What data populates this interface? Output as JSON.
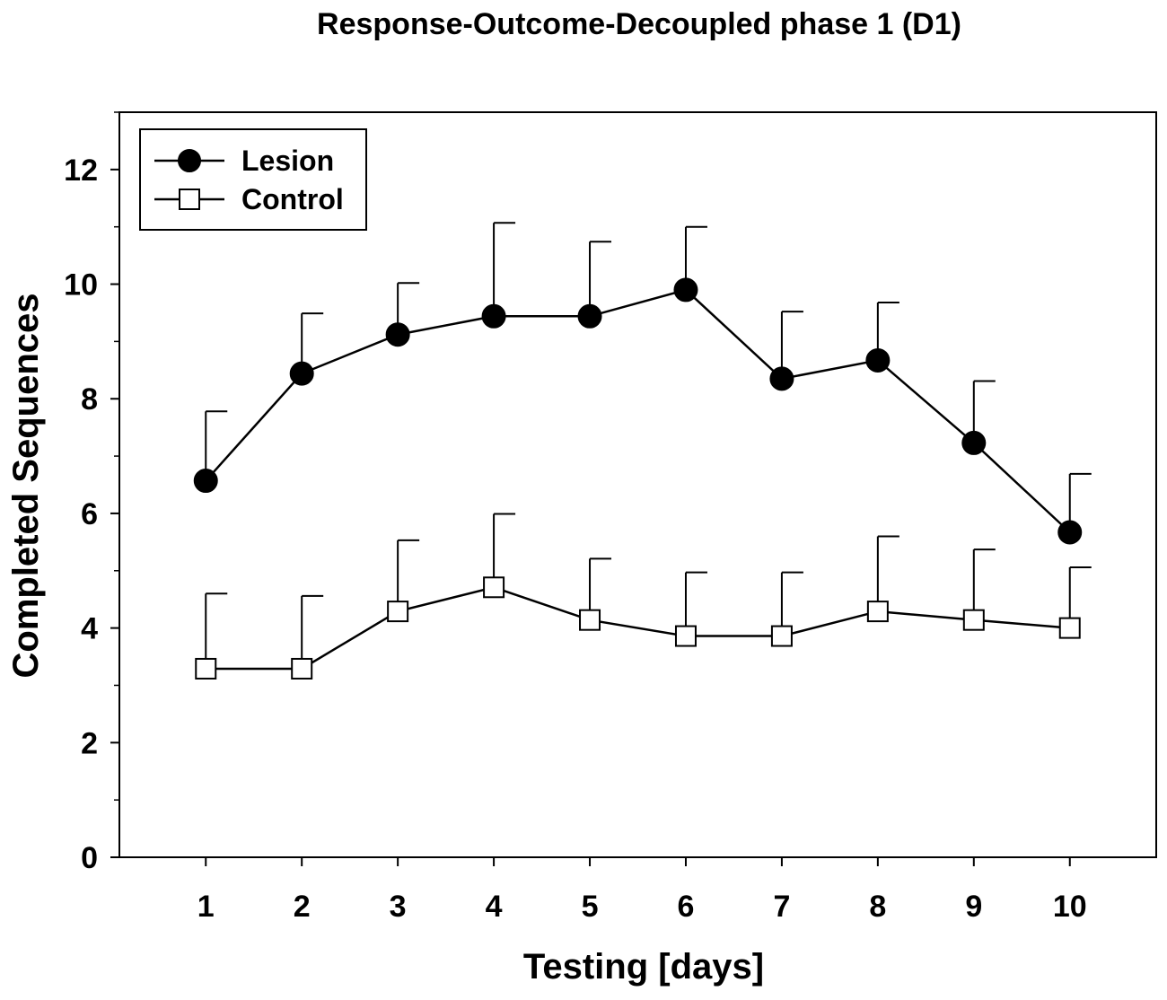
{
  "chart_data": {
    "type": "line",
    "title": "Response-Outcome-Decoupled phase 1 (D1)",
    "xlabel": "Testing [days]",
    "ylabel": "Completed Sequences",
    "x": [
      1,
      2,
      3,
      4,
      5,
      6,
      7,
      8,
      9,
      10
    ],
    "x_tick_labels": [
      "1",
      "2",
      "3",
      "4",
      "5",
      "6",
      "7",
      "8",
      "9",
      "10"
    ],
    "xlim": [
      0.1,
      10.9
    ],
    "ylim": [
      0,
      13
    ],
    "y_ticks": [
      0,
      2,
      4,
      6,
      8,
      10,
      12
    ],
    "y_tick_labels": [
      "0",
      "2",
      "4",
      "6",
      "8",
      "10",
      "12"
    ],
    "y_minor_ticks": [
      1,
      3,
      5,
      7,
      9,
      11,
      13
    ],
    "grid": false,
    "legend_position": "top-left",
    "series": [
      {
        "name": "Lesion",
        "marker": "filled-circle",
        "color": "#000000",
        "values": [
          6.57,
          8.44,
          9.12,
          9.44,
          9.44,
          9.9,
          8.35,
          8.67,
          7.23,
          5.67
        ],
        "error_upper": [
          7.78,
          9.49,
          10.02,
          11.07,
          10.74,
          11.0,
          9.52,
          9.68,
          8.31,
          6.69
        ]
      },
      {
        "name": "Control",
        "marker": "open-square",
        "color": "#000000",
        "values": [
          3.29,
          3.29,
          4.29,
          4.71,
          4.14,
          3.86,
          3.86,
          4.29,
          4.14,
          4.0
        ],
        "error_upper": [
          4.6,
          4.56,
          5.53,
          5.99,
          5.21,
          4.97,
          4.97,
          5.6,
          5.37,
          5.06
        ]
      }
    ]
  }
}
